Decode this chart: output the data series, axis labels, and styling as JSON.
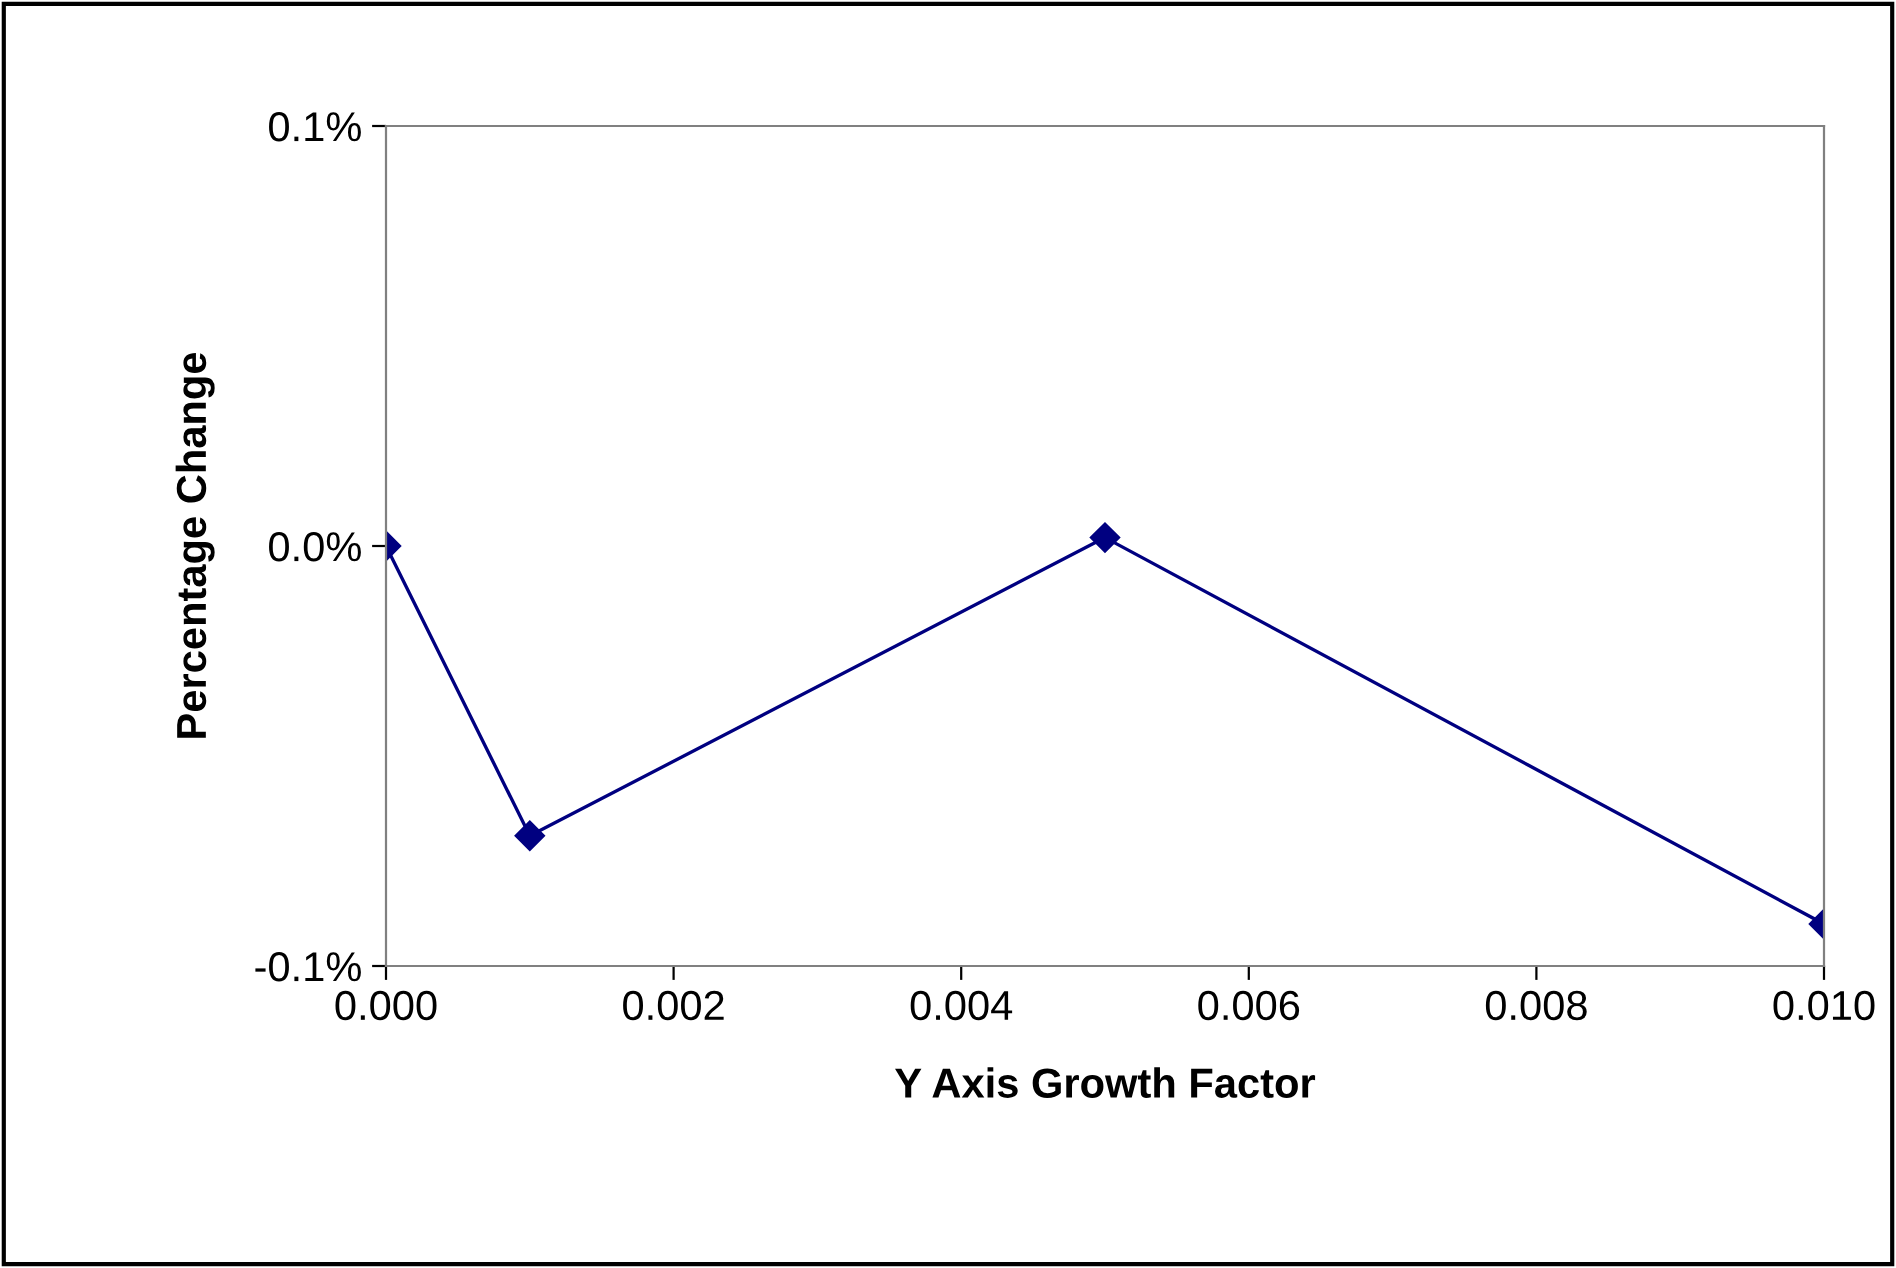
{
  "chart_data": {
    "type": "line",
    "xlabel": "Y Axis Growth Factor",
    "ylabel": "Percentage Change",
    "x": [
      0.0,
      0.001,
      0.005,
      0.01
    ],
    "series": [
      {
        "color": "#000080",
        "values": [
          0.0,
          -0.069,
          0.002,
          -0.09
        ]
      }
    ],
    "xlim": [
      0.0,
      0.01
    ],
    "xticks": [
      {
        "value": 0.0,
        "label": "0.000"
      },
      {
        "value": 0.002,
        "label": "0.002"
      },
      {
        "value": 0.004,
        "label": "0.004"
      },
      {
        "value": 0.006,
        "label": "0.006"
      },
      {
        "value": 0.008,
        "label": "0.008"
      },
      {
        "value": 0.01,
        "label": "0.010"
      }
    ],
    "ylim": [
      -0.1,
      0.1
    ],
    "yticks": [
      {
        "value": -0.1,
        "label": "-0.1%"
      },
      {
        "value": 0.0,
        "label": "0.0%"
      },
      {
        "value": 0.1,
        "label": "0.1%"
      }
    ],
    "grid": false,
    "legend": false,
    "marker": "diamond",
    "line_style": "solid"
  }
}
